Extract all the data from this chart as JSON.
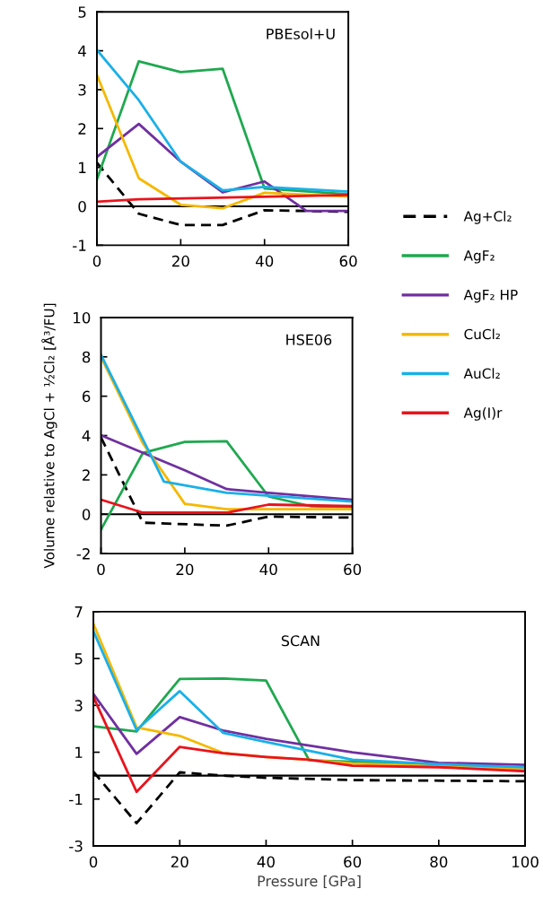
{
  "chart_data": [
    {
      "type": "line",
      "title": "PBEsol+U",
      "xlim": [
        0,
        60
      ],
      "xticks": [
        0,
        20,
        40,
        60
      ],
      "ylim": [
        -1,
        5
      ],
      "yticks": [
        -1,
        0,
        1,
        2,
        3,
        4,
        5
      ],
      "grid": false,
      "legend": "right",
      "marker": "none",
      "ref_lines": [
        {
          "axis": "y",
          "value": 0,
          "color": "#000000"
        }
      ],
      "series": [
        {
          "name": "Ag+Cl₂",
          "color": "#000000",
          "line_style": "dashed",
          "x": [
            0,
            10,
            20,
            30,
            40,
            60
          ],
          "values": [
            1.12,
            -0.19,
            -0.48,
            -0.48,
            -0.1,
            -0.14
          ]
        },
        {
          "name": "AgF₂",
          "color": "#1fa84f",
          "x": [
            0,
            10,
            20,
            30,
            40,
            60
          ],
          "values": [
            0.69,
            3.73,
            3.45,
            3.54,
            0.46,
            0.31
          ]
        },
        {
          "name": "AgF₂ HP",
          "color": "#7030a0",
          "x": [
            0,
            10,
            20,
            30,
            40,
            50,
            60
          ],
          "values": [
            1.27,
            2.12,
            1.15,
            0.36,
            0.64,
            -0.12,
            -0.12
          ]
        },
        {
          "name": "CuCl₂",
          "color": "#f5b800",
          "x": [
            0,
            10,
            20,
            30,
            40,
            60
          ],
          "values": [
            3.38,
            0.72,
            0.04,
            -0.05,
            0.35,
            0.25
          ]
        },
        {
          "name": "AuCl₂",
          "color": "#1ab0e8",
          "x": [
            0,
            10,
            20,
            30,
            40,
            60
          ],
          "values": [
            4.02,
            2.73,
            1.15,
            0.41,
            0.5,
            0.38
          ]
        },
        {
          "name": "Ag(I)r",
          "color": "#e8141c",
          "x": [
            0,
            10,
            60
          ],
          "values": [
            0.12,
            0.18,
            0.29
          ]
        }
      ]
    },
    {
      "type": "line",
      "title": "HSE06",
      "ylabel": "Volume relative to AgCl + ½Cl₂ [Å³/FU]",
      "xlim": [
        0,
        60
      ],
      "xticks": [
        0,
        20,
        40,
        60
      ],
      "ylim": [
        -2,
        10
      ],
      "yticks": [
        -2,
        0,
        2,
        4,
        6,
        8,
        10
      ],
      "grid": false,
      "marker": "none",
      "ref_lines": [
        {
          "axis": "y",
          "value": 0,
          "color": "#000000"
        }
      ],
      "series": [
        {
          "color": "#000000",
          "line_style": "dashed",
          "x": [
            0,
            10,
            30,
            40,
            60
          ],
          "values": [
            3.9,
            -0.43,
            -0.58,
            -0.12,
            -0.17
          ]
        },
        {
          "color": "#1fa84f",
          "x": [
            0,
            10,
            20,
            30,
            40,
            50,
            60
          ],
          "values": [
            -0.78,
            3.12,
            3.68,
            3.71,
            0.9,
            0.41,
            0.36
          ]
        },
        {
          "color": "#7030a0",
          "x": [
            0,
            10,
            20,
            30,
            40,
            60
          ],
          "values": [
            4.01,
            3.12,
            2.23,
            1.28,
            1.09,
            0.74
          ]
        },
        {
          "color": "#f5b800",
          "x": [
            0,
            10,
            20,
            30,
            60
          ],
          "values": [
            8.0,
            3.6,
            0.53,
            0.26,
            0.26
          ]
        },
        {
          "color": "#1ab0e8",
          "x": [
            0,
            15,
            30,
            40,
            60
          ],
          "values": [
            8.1,
            1.66,
            1.09,
            0.94,
            0.64
          ]
        },
        {
          "color": "#e8141c",
          "x": [
            0,
            10,
            30,
            40,
            60
          ],
          "values": [
            0.74,
            0.08,
            0.08,
            0.49,
            0.41
          ]
        }
      ]
    },
    {
      "type": "line",
      "title": "SCAN",
      "xlabel": "Pressure [GPa]",
      "xlim": [
        0,
        100
      ],
      "xticks": [
        0,
        20,
        40,
        60,
        80,
        100
      ],
      "ylim": [
        -3,
        7
      ],
      "yticks": [
        -3,
        -1,
        1,
        3,
        5,
        7
      ],
      "grid": false,
      "marker": "none",
      "ref_lines": [
        {
          "axis": "y",
          "value": 0,
          "color": "#000000"
        }
      ],
      "series": [
        {
          "color": "#000000",
          "line_style": "dashed",
          "x": [
            0,
            10,
            20,
            30,
            40,
            60,
            100
          ],
          "values": [
            0.17,
            -2.03,
            0.14,
            0,
            -0.09,
            -0.19,
            -0.24
          ]
        },
        {
          "color": "#1fa84f",
          "x": [
            0,
            10,
            20,
            30,
            40,
            50,
            60,
            100
          ],
          "values": [
            2.11,
            1.89,
            4.13,
            4.15,
            4.06,
            0.65,
            0.59,
            0.32
          ]
        },
        {
          "color": "#7030a0",
          "x": [
            0,
            10,
            20,
            30,
            40,
            60,
            80,
            100
          ],
          "values": [
            3.49,
            0.93,
            2.5,
            1.93,
            1.57,
            1.0,
            0.55,
            0.46
          ]
        },
        {
          "color": "#f5b800",
          "x": [
            0,
            10,
            20,
            30,
            40,
            50,
            60,
            100
          ],
          "values": [
            6.49,
            2.06,
            1.7,
            0.97,
            0.8,
            0.68,
            0.52,
            0.29
          ]
        },
        {
          "color": "#1ab0e8",
          "x": [
            0,
            10,
            20,
            30,
            40,
            60,
            80,
            100
          ],
          "values": [
            6.17,
            1.95,
            3.61,
            1.83,
            1.44,
            0.68,
            0.49,
            0.36
          ]
        },
        {
          "color": "#e8141c",
          "x": [
            0,
            10,
            20,
            30,
            40,
            50,
            60,
            80,
            100
          ],
          "values": [
            3.36,
            -0.69,
            1.23,
            0.96,
            0.8,
            0.68,
            0.42,
            0.36,
            0.19
          ]
        }
      ]
    }
  ]
}
